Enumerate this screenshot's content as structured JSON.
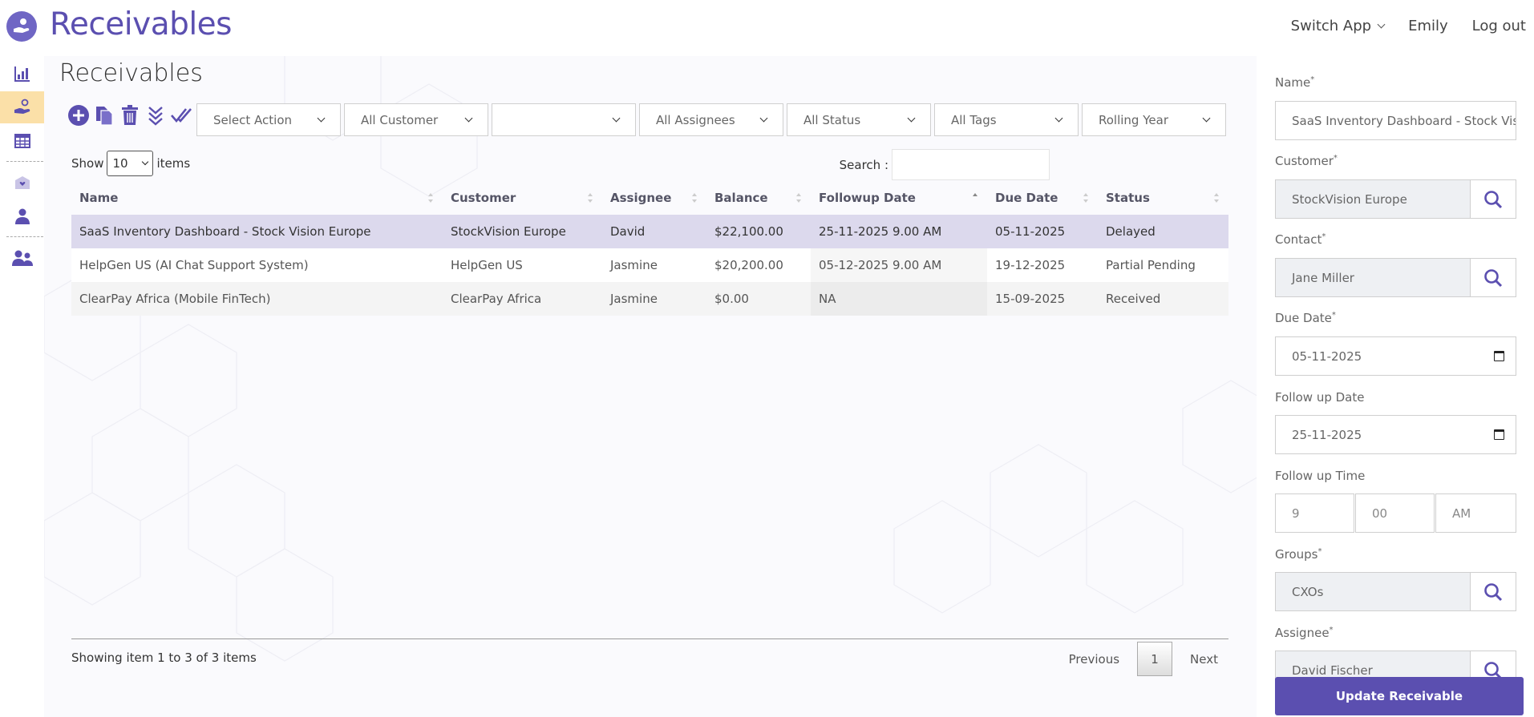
{
  "header": {
    "app_title": "Receivables",
    "switch_app": "Switch App",
    "user": "Emily",
    "logout": "Log out"
  },
  "rail": {
    "items": [
      "chart-icon",
      "hand-coin-icon",
      "calendar-icon",
      "heart-mail-icon",
      "person-icon",
      "people-icon"
    ],
    "active": "hand-coin-icon"
  },
  "page": {
    "title": "Receivables"
  },
  "toolbar": {
    "icons": [
      "add-icon",
      "copy-icon",
      "delete-icon",
      "double-chevron-down-icon",
      "double-check-icon"
    ]
  },
  "filters": {
    "action": "Select Action",
    "customer": "All Customer",
    "blank": "",
    "assignees": "All Assignees",
    "status": "All Status",
    "tags": "All Tags",
    "period": "Rolling Year"
  },
  "list": {
    "show_label": "Show",
    "page_size": "10",
    "items_label": "items",
    "search_label": "Search :",
    "search_value": ""
  },
  "table": {
    "columns": [
      "Name",
      "Customer",
      "Assignee",
      "Balance",
      "Followup Date",
      "Due Date",
      "Status"
    ],
    "rows": [
      {
        "name": "SaaS Inventory Dashboard - Stock Vision Europe",
        "customer": "StockVision Europe",
        "assignee": "David",
        "balance": "$22,100.00",
        "followup": "25-11-2025 9.00 AM",
        "due": "05-11-2025",
        "status": "Delayed"
      },
      {
        "name": "HelpGen US (AI Chat Support System)",
        "customer": "HelpGen US",
        "assignee": "Jasmine",
        "balance": "$20,200.00",
        "followup": "05-12-2025 9.00 AM",
        "due": "19-12-2025",
        "status": "Partial Pending"
      },
      {
        "name": "ClearPay Africa (Mobile FinTech)",
        "customer": "ClearPay Africa",
        "assignee": "Jasmine",
        "balance": "$0.00",
        "followup": "NA",
        "due": "15-09-2025",
        "status": "Received"
      }
    ]
  },
  "footer": {
    "showing": "Showing item 1 to 3 of 3 items",
    "previous": "Previous",
    "page": "1",
    "next": "Next"
  },
  "form": {
    "name_label": "Name",
    "name_value": "SaaS Inventory Dashboard - Stock Vision Europe",
    "customer_label": "Customer",
    "customer_value": "StockVision Europe",
    "contact_label": "Contact",
    "contact_value": "Jane Miller",
    "due_label": "Due Date",
    "due_value": "05-11-2025",
    "followup_date_label": "Follow up Date",
    "followup_date_value": "25-11-2025",
    "followup_time_label": "Follow up Time",
    "hour": "9",
    "minute": "00",
    "ampm": "AM",
    "groups_label": "Groups",
    "groups_value": "CXOs",
    "assignee_label": "Assignee",
    "assignee_value": "David Fischer",
    "required_mark": "*",
    "submit": "Update Receivable"
  },
  "colors": {
    "brand": "#5b4fb0",
    "active_rail": "#fbe0a8",
    "selected_row": "#dcd9ed"
  }
}
